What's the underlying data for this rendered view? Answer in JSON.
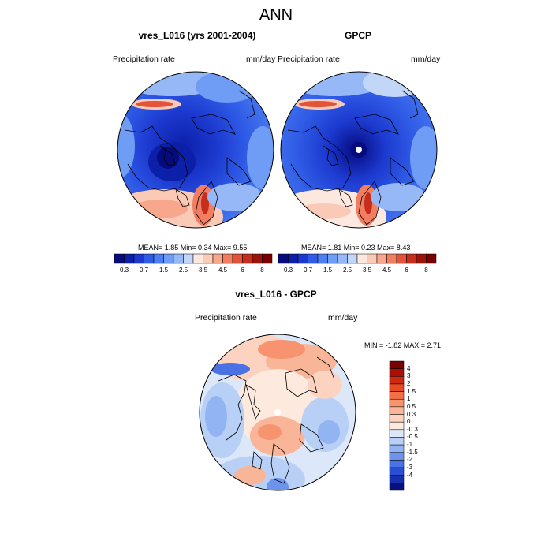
{
  "title": "ANN",
  "panels": [
    {
      "title": "vres_L016 (yrs 2001-2004)",
      "left_label": "Precipitation rate",
      "right_label": "mm/day",
      "stats": "MEAN=   1.85  Min=   0.34  Max=   9.55"
    },
    {
      "title": "GPCP",
      "left_label": "Precipitation rate",
      "right_label": "mm/day",
      "stats": "MEAN=   1.81  Min=   0.23  Max=   8.43"
    }
  ],
  "diff_panel": {
    "title": "vres_L016 - GPCP",
    "left_label": "Precipitation rate",
    "right_label": "mm/day",
    "stats": "MIN =  -1.82 MAX =   2.71"
  },
  "colorbar_horizontal": {
    "colors": [
      "#050a7d",
      "#0b1fa8",
      "#1c39cf",
      "#2f5be6",
      "#4d7ff0",
      "#6f9cf4",
      "#97b8f6",
      "#c2d6f8",
      "#fde8df",
      "#fbcab7",
      "#f8a78d",
      "#f27e62",
      "#e2533a",
      "#c52e1c",
      "#9c1309",
      "#7a0000"
    ],
    "labels": [
      "0.3",
      "0.7",
      "1.5",
      "2.5",
      "3.5",
      "4.5",
      "6",
      "8"
    ]
  },
  "colorbar_vertical": {
    "colors": [
      "#7a0000",
      "#a80f05",
      "#cc2a12",
      "#e84a24",
      "#f46f48",
      "#f7936f",
      "#f9b597",
      "#fbd3c0",
      "#fde9dd",
      "#dce8fa",
      "#b8d0f6",
      "#93b4f2",
      "#6d94ec",
      "#4a72e4",
      "#2b4fd2",
      "#1630b0",
      "#07117f"
    ],
    "labels": [
      "4",
      "3",
      "2",
      "1.5",
      "1",
      "0.5",
      "0.3",
      "0",
      "-0.3",
      "-0.5",
      "-1",
      "-1.5",
      "-2",
      "-3",
      "-4"
    ]
  }
}
